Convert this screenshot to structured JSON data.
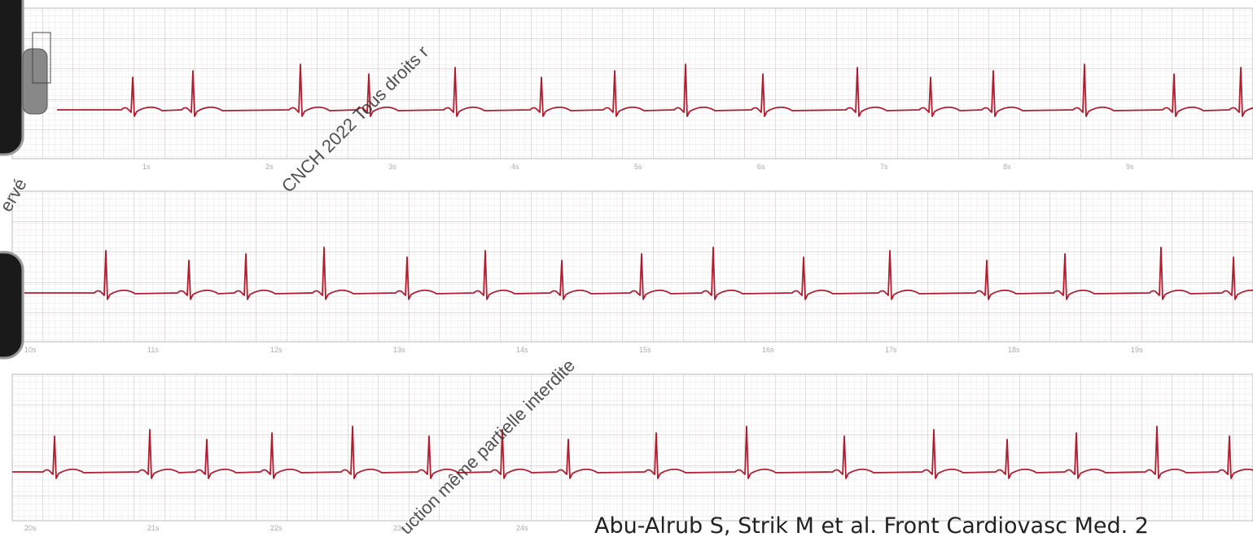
{
  "watermark": {
    "line1": "CNCH 2022 Tous droits r",
    "line2": "uction même partielle interdite",
    "side": "ervé"
  },
  "strips": [
    {
      "time_labels": [
        "1s",
        "2s",
        "3s",
        "4s",
        "5s",
        "6s",
        "7s",
        "8s",
        "9s"
      ]
    },
    {
      "time_labels": [
        "10s",
        "11s",
        "12s",
        "13s",
        "14s",
        "15s",
        "16s",
        "17s",
        "18s",
        "19s"
      ]
    },
    {
      "time_labels": [
        "20s",
        "21s",
        "22s",
        "23s",
        "24s"
      ]
    }
  ],
  "citation": "Abu-Alrub S, Strik M et al. Front Cardiovasc Med. 2"
}
